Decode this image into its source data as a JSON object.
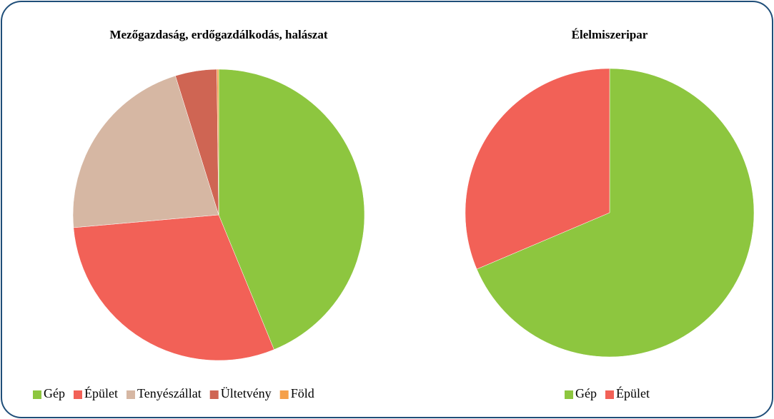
{
  "chart_data": [
    {
      "type": "pie",
      "title": "Mezőgazdaság, erdőgazdálkodás, halászat",
      "categories": [
        "Gép",
        "Épület",
        "Tenyészállat",
        "Ültetvény",
        "Föld"
      ],
      "values": [
        43.8,
        29.8,
        21.6,
        4.6,
        0.2
      ],
      "colors": [
        "#8dc63f",
        "#f26157",
        "#d6b7a3",
        "#cf6553",
        "#f5a04a"
      ]
    },
    {
      "type": "pie",
      "title": "Élelmiszeripar",
      "categories": [
        "Gép",
        "Épület"
      ],
      "values": [
        68.6,
        31.4
      ],
      "colors": [
        "#8dc63f",
        "#f26157"
      ]
    }
  ]
}
